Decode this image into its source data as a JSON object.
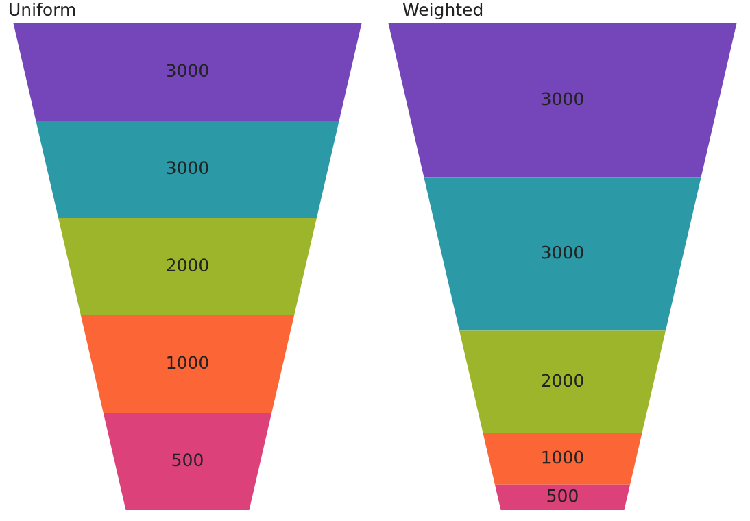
{
  "chart_data": [
    {
      "type": "other",
      "title": "Uniform",
      "values": [
        3000,
        3000,
        2000,
        1000,
        500
      ],
      "colors": [
        "#7446b9",
        "#2b9aa6",
        "#9db52a",
        "#fc6535",
        "#dc4179"
      ],
      "data_labels": true
    },
    {
      "type": "other",
      "title": "Weighted",
      "values": [
        3000,
        3000,
        2000,
        1000,
        500
      ],
      "colors": [
        "#7446b9",
        "#2b9aa6",
        "#9db52a",
        "#fc6535",
        "#dc4179"
      ],
      "data_labels": true
    }
  ]
}
